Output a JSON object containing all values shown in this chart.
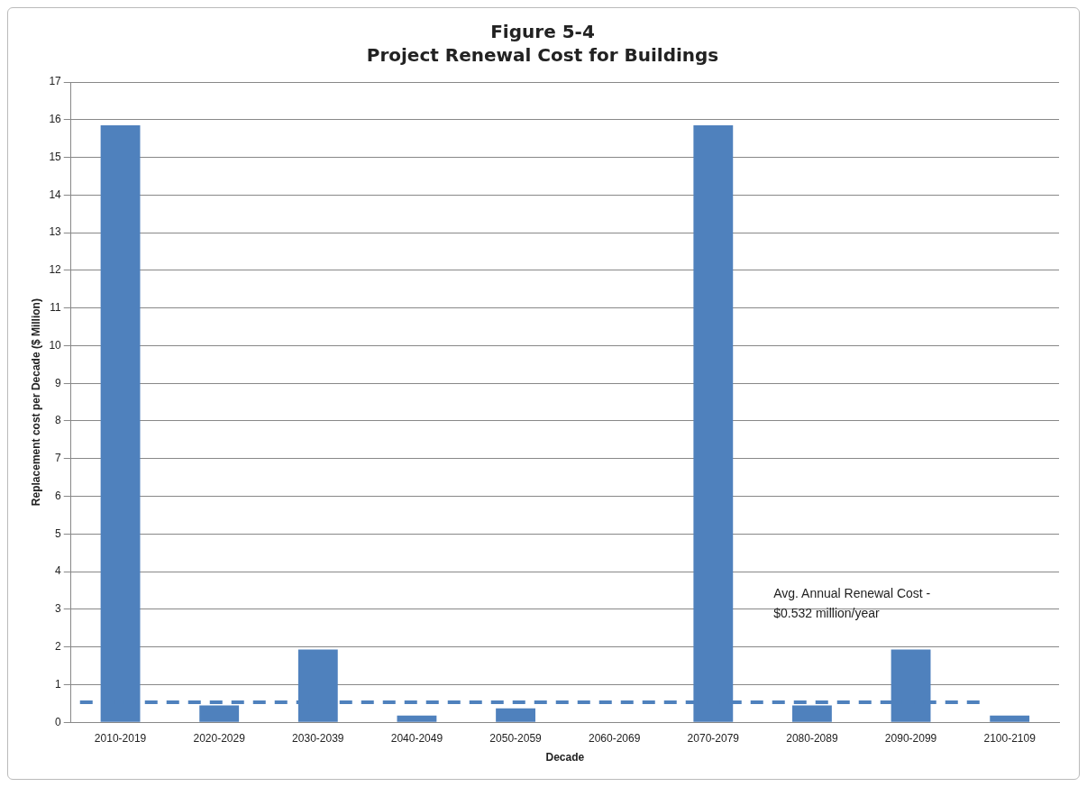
{
  "chart_data": {
    "type": "bar",
    "title": "Figure 5-4",
    "subtitle": "Project Renewal Cost for Buildings",
    "xlabel": "Decade",
    "ylabel": "Replacement cost per Decade ($ Million)",
    "categories": [
      "2010-2019",
      "2020-2029",
      "2030-2039",
      "2040-2049",
      "2050-2059",
      "2060-2069",
      "2070-2079",
      "2080-2089",
      "2090-2099",
      "2100-2109"
    ],
    "values": [
      15.85,
      0.45,
      1.93,
      0.18,
      0.37,
      0,
      15.85,
      0.45,
      1.93,
      0.18
    ],
    "color": "#4f81bd",
    "ylim": [
      0,
      17
    ],
    "yticks": [
      0,
      1,
      2,
      3,
      4,
      5,
      6,
      7,
      8,
      9,
      10,
      11,
      12,
      13,
      14,
      15,
      16,
      17
    ],
    "grid": "y",
    "legend": false,
    "annotations": [
      "Avg. Annual Renewal Cost - $0.532 million/year"
    ],
    "ref_lines": [
      {
        "axis": "y",
        "value": 0.532,
        "color": "#4f81bd",
        "line_style": "dashed"
      }
    ]
  }
}
